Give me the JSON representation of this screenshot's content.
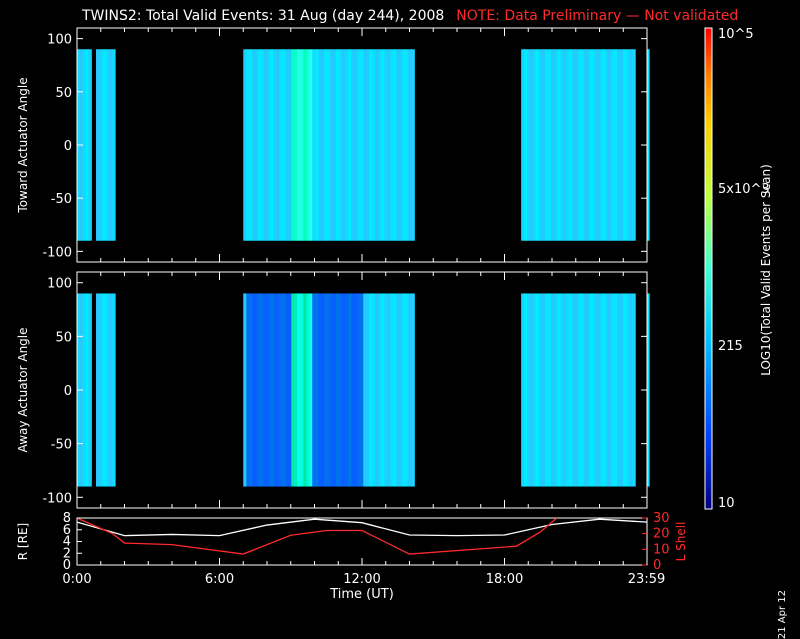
{
  "header": {
    "title": "TWINS2: Total Valid Events: 31 Aug (day 244), 2008",
    "note": "NOTE: Data Preliminary — Not validated"
  },
  "footer": {
    "date": "21 Apr 12"
  },
  "colorbar": {
    "label": "LOG10(Total Valid Events per Scan)",
    "ticks": [
      "10",
      "215",
      "5x10^3",
      "10^5"
    ]
  },
  "chart_data": [
    {
      "type": "heatmap",
      "ylabel": "Toward Actuator Angle",
      "ylim": [
        -110,
        110
      ],
      "y_ticks": [
        -100,
        -50,
        0,
        50,
        100
      ],
      "x_ticks": [
        "0:00",
        "6:00",
        "12:00",
        "18:00",
        "23:59"
      ],
      "xlim_hours": [
        0,
        24
      ],
      "data_blocks_hours": [
        [
          0.0,
          0.6
        ],
        [
          0.8,
          1.6
        ],
        [
          7.0,
          14.2
        ],
        [
          18.7,
          23.5
        ],
        [
          24.0,
          24.2
        ]
      ],
      "angle_range": [
        -90,
        90
      ]
    },
    {
      "type": "heatmap",
      "ylabel": "Away Actuator Angle",
      "ylim": [
        -110,
        110
      ],
      "y_ticks": [
        -100,
        -50,
        0,
        50,
        100
      ],
      "x_ticks": [
        "0:00",
        "6:00",
        "12:00",
        "18:00",
        "23:59"
      ],
      "xlim_hours": [
        0,
        24
      ],
      "data_blocks_hours": [
        [
          0.0,
          0.6
        ],
        [
          0.8,
          1.6
        ],
        [
          7.0,
          14.2
        ],
        [
          18.7,
          23.5
        ],
        [
          24.0,
          24.2
        ]
      ],
      "angle_range": [
        -90,
        90
      ]
    },
    {
      "type": "line",
      "xlabel": "Time (UT)",
      "ylabel": "R [RE]",
      "y2label": "L Shell",
      "ylim": [
        0,
        8
      ],
      "y2lim": [
        0,
        30
      ],
      "y_ticks": [
        0,
        2,
        4,
        6,
        8
      ],
      "y2_ticks": [
        0,
        10,
        20,
        30
      ],
      "x_ticks": [
        "0:00",
        "6:00",
        "12:00",
        "18:00",
        "23:59"
      ],
      "series": [
        {
          "name": "R [RE]",
          "color": "#ffffff",
          "x": [
            0,
            2,
            4,
            6,
            8,
            10,
            12,
            14,
            16,
            18,
            20,
            22,
            24
          ],
          "y": [
            7.3,
            5.0,
            5.2,
            5.0,
            6.8,
            7.8,
            7.2,
            5.1,
            5.0,
            5.1,
            6.9,
            7.8,
            7.3
          ]
        },
        {
          "name": "L Shell",
          "color": "#ff2a2a",
          "x": [
            0,
            1.5,
            2,
            4,
            7,
            9,
            10.5,
            12,
            14,
            18.5,
            19.5,
            20.2
          ],
          "y": [
            30,
            20,
            14,
            13,
            7,
            19,
            22,
            22,
            7,
            12,
            21,
            30
          ]
        }
      ]
    }
  ]
}
